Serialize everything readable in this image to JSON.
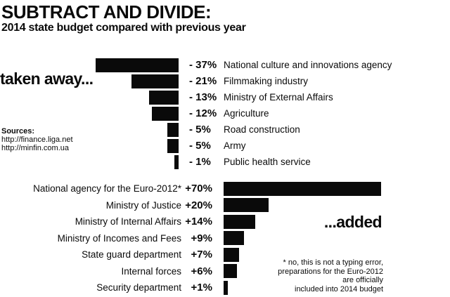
{
  "header": {
    "title": "SUBTRACT AND DIVIDE:",
    "subtitle": "2014 state budget compared with previous year"
  },
  "sources": {
    "heading": "Sources:",
    "links": [
      "http://finance.liga.net",
      "http://minfin.com.ua"
    ]
  },
  "colors": {
    "background": "#ffffff",
    "bar": "#0a0a0a",
    "text": "#0a0a0a"
  },
  "chart_data": [
    {
      "type": "bar",
      "orientation": "horizontal",
      "bar_alignment": "right",
      "section_label": "taken away...",
      "unit": "%",
      "categories": [
        "National culture and innovations agency",
        "Filmmaking industry",
        "Ministry of External Affairs",
        "Agriculture",
        "Road construction",
        "Army",
        "Public health service"
      ],
      "values": [
        -37,
        -21,
        -13,
        -12,
        -5,
        -5,
        -1
      ],
      "value_labels": [
        "- 37%",
        "- 21%",
        "- 13%",
        "- 12%",
        "- 5%",
        "- 5%",
        "- 1%"
      ]
    },
    {
      "type": "bar",
      "orientation": "horizontal",
      "bar_alignment": "left",
      "section_label": "...added",
      "unit": "%",
      "categories": [
        "National agency for the Euro-2012*",
        "Ministry of Justice",
        "Ministry of Internal Affairs",
        "Ministry of Incomes and Fees",
        "State guard department",
        "Internal forces",
        "Security department"
      ],
      "values": [
        70,
        20,
        14,
        9,
        7,
        6,
        1
      ],
      "value_labels": [
        "+70%",
        "+20%",
        "+14%",
        "+9%",
        "+7%",
        "+6%",
        "+1%"
      ]
    }
  ],
  "footnote": {
    "lines": [
      "* no, this is not a typing error,",
      "preparations for the Euro-2012",
      "are officially",
      "included into 2014 budget"
    ]
  }
}
